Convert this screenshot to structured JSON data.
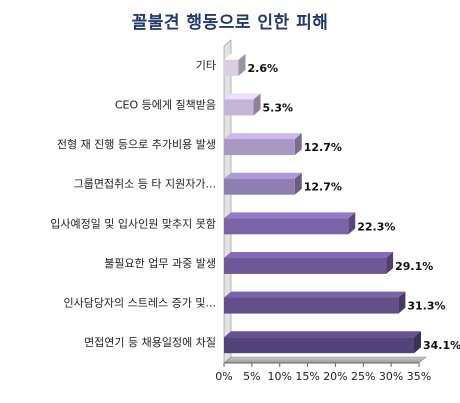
{
  "chart_data": {
    "type": "bar",
    "orientation": "horizontal",
    "title": "꼴불견 행동으로 인한 피해",
    "categories": [
      "기타",
      "CEO 등에게 질책받음",
      "전형 재 진행 등으로 추가비용 발생",
      "그룹면접취소 등 타 지원자가...",
      "입사예정일 및 입사인원 맞추지 못함",
      "불필요한 업무 과중 발생",
      "인사담당자의 스트레스 증가 및...",
      "면접연기 등 채용일정에 차질"
    ],
    "values": [
      2.6,
      5.3,
      12.7,
      12.7,
      22.3,
      29.1,
      31.3,
      34.1
    ],
    "value_labels": [
      "2.6%",
      "5.3%",
      "12.7%",
      "12.7%",
      "22.3%",
      "29.1%",
      "31.3%",
      "34.1%"
    ],
    "xlim": [
      0,
      35
    ],
    "xticks": [
      "0%",
      "5%",
      "10%",
      "15%",
      "20%",
      "25%",
      "30%",
      "35%"
    ],
    "xlabel": "",
    "ylabel": "",
    "grid": false,
    "legend": "none",
    "bar_colors": [
      "#d8cfe4",
      "#c2b5d6",
      "#a898c4",
      "#8f7eb2",
      "#7a63a6",
      "#6f5898",
      "#62508a",
      "#53437a"
    ]
  }
}
